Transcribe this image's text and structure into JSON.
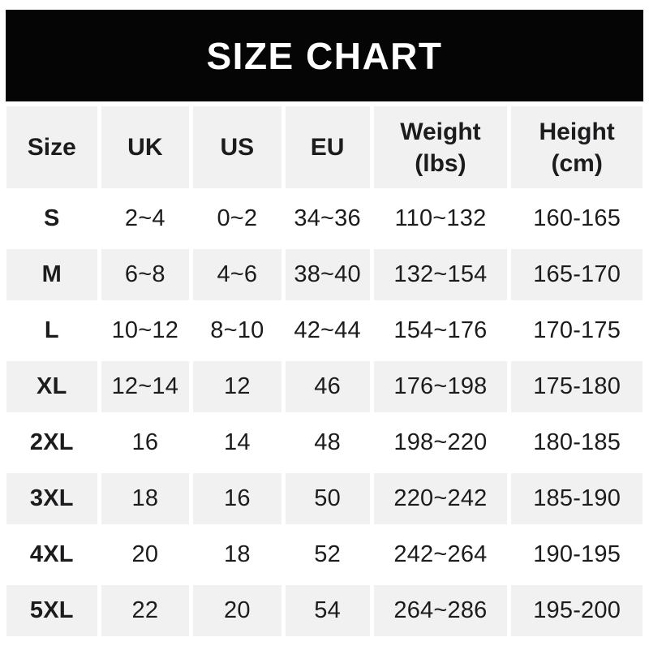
{
  "banner": {
    "title": "SIZE CHART"
  },
  "chart_data": {
    "type": "table",
    "title": "SIZE CHART",
    "columns": [
      {
        "label": "Size",
        "sub": ""
      },
      {
        "label": "UK",
        "sub": ""
      },
      {
        "label": "US",
        "sub": ""
      },
      {
        "label": "EU",
        "sub": ""
      },
      {
        "label": "Weight",
        "sub": "(lbs)"
      },
      {
        "label": "Height",
        "sub": "(cm)"
      }
    ],
    "rows": [
      {
        "cells": [
          "S",
          "2~4",
          "0~2",
          "34~36",
          "110~132",
          "160-165"
        ]
      },
      {
        "cells": [
          "M",
          "6~8",
          "4~6",
          "38~40",
          "132~154",
          "165-170"
        ]
      },
      {
        "cells": [
          "L",
          "10~12",
          "8~10",
          "42~44",
          "154~176",
          "170-175"
        ]
      },
      {
        "cells": [
          "XL",
          "12~14",
          "12",
          "46",
          "176~198",
          "175-180"
        ]
      },
      {
        "cells": [
          "2XL",
          "16",
          "14",
          "48",
          "198~220",
          "180-185"
        ]
      },
      {
        "cells": [
          "3XL",
          "18",
          "16",
          "50",
          "220~242",
          "185-190"
        ]
      },
      {
        "cells": [
          "4XL",
          "20",
          "18",
          "52",
          "242~264",
          "190-195"
        ]
      },
      {
        "cells": [
          "5XL",
          "22",
          "20",
          "54",
          "264~286",
          "195-200"
        ]
      }
    ],
    "layout_hints": {
      "shaded_rows": [
        "M",
        "XL",
        "3XL",
        "5XL"
      ],
      "range_separator_body": "~",
      "range_separator_height": "-"
    }
  },
  "theme": {
    "banner_bg": "#050505",
    "banner_text": "#ffffff",
    "shade": "#f1f1f1",
    "text": "#1c1c1e"
  }
}
